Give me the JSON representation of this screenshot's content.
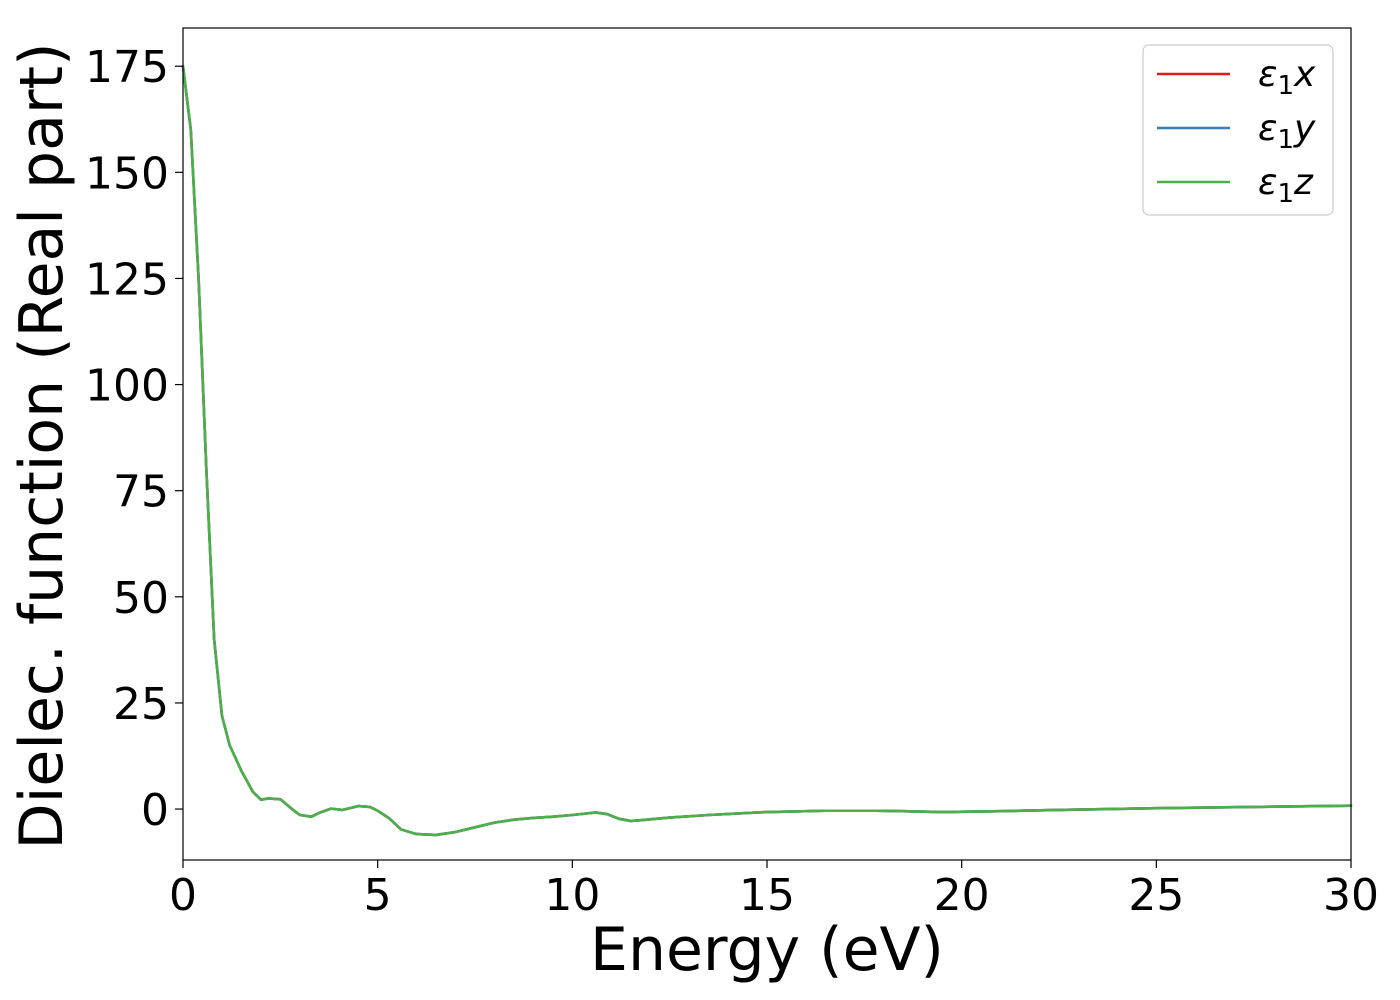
{
  "chart_data": {
    "type": "line",
    "title": "",
    "xlabel": "Energy (eV)",
    "ylabel": "Dielec. function (Real part)",
    "xlim": [
      0,
      30
    ],
    "ylim": [
      -12,
      184
    ],
    "xticks": [
      0,
      5,
      10,
      15,
      20,
      25,
      30
    ],
    "yticks": [
      0,
      25,
      50,
      75,
      100,
      125,
      150,
      175
    ],
    "grid": false,
    "legend_position": "top-right",
    "x": [
      0.0,
      0.2,
      0.4,
      0.6,
      0.8,
      1.0,
      1.2,
      1.5,
      1.8,
      2.0,
      2.2,
      2.5,
      2.8,
      3.0,
      3.3,
      3.5,
      3.8,
      4.1,
      4.5,
      4.8,
      5.0,
      5.3,
      5.6,
      6.0,
      6.5,
      7.0,
      7.5,
      8.0,
      8.5,
      9.0,
      9.5,
      10.0,
      10.3,
      10.6,
      10.9,
      11.2,
      11.5,
      11.8,
      12.5,
      13.5,
      15.0,
      16.5,
      17.8,
      18.5,
      19.5,
      21.0,
      22.5,
      25.0,
      27.5,
      30.0
    ],
    "series": [
      {
        "name": "ε1x",
        "label_base": "ε",
        "label_sub": "1",
        "label_tail": "x",
        "color": "#e41a1c",
        "y": [
          175,
          160,
          125,
          80,
          40,
          22,
          15,
          9,
          4,
          2.2,
          2.5,
          2.3,
          0.0,
          -1.4,
          -1.8,
          -0.9,
          0.1,
          -0.2,
          0.7,
          0.5,
          -0.4,
          -2.2,
          -4.8,
          -5.9,
          -6.1,
          -5.4,
          -4.3,
          -3.2,
          -2.5,
          -2.1,
          -1.8,
          -1.4,
          -1.1,
          -0.8,
          -1.2,
          -2.3,
          -2.8,
          -2.6,
          -2.0,
          -1.4,
          -0.7,
          -0.4,
          -0.4,
          -0.5,
          -0.7,
          -0.5,
          -0.2,
          0.2,
          0.5,
          0.8
        ]
      },
      {
        "name": "ε1y",
        "label_base": "ε",
        "label_sub": "1",
        "label_tail": "y",
        "color": "#377eb8",
        "y": [
          175,
          160,
          125,
          80,
          40,
          22,
          15,
          9,
          4,
          2.2,
          2.5,
          2.3,
          0.0,
          -1.4,
          -1.8,
          -0.9,
          0.1,
          -0.2,
          0.7,
          0.5,
          -0.4,
          -2.2,
          -4.8,
          -5.9,
          -6.1,
          -5.4,
          -4.3,
          -3.2,
          -2.5,
          -2.1,
          -1.8,
          -1.4,
          -1.1,
          -0.8,
          -1.2,
          -2.3,
          -2.8,
          -2.6,
          -2.0,
          -1.4,
          -0.7,
          -0.4,
          -0.4,
          -0.5,
          -0.7,
          -0.5,
          -0.2,
          0.2,
          0.5,
          0.8
        ]
      },
      {
        "name": "ε1z",
        "label_base": "ε",
        "label_sub": "1",
        "label_tail": "z",
        "color": "#4daf4a",
        "y": [
          175,
          160,
          125,
          80,
          40,
          22,
          15,
          9,
          4,
          2.2,
          2.5,
          2.3,
          0.0,
          -1.4,
          -1.8,
          -0.9,
          0.1,
          -0.2,
          0.7,
          0.5,
          -0.4,
          -2.2,
          -4.8,
          -5.9,
          -6.1,
          -5.4,
          -4.3,
          -3.2,
          -2.5,
          -2.1,
          -1.8,
          -1.4,
          -1.1,
          -0.8,
          -1.2,
          -2.3,
          -2.8,
          -2.6,
          -2.0,
          -1.4,
          -0.7,
          -0.4,
          -0.4,
          -0.5,
          -0.7,
          -0.5,
          -0.2,
          0.2,
          0.5,
          0.8
        ]
      }
    ]
  }
}
